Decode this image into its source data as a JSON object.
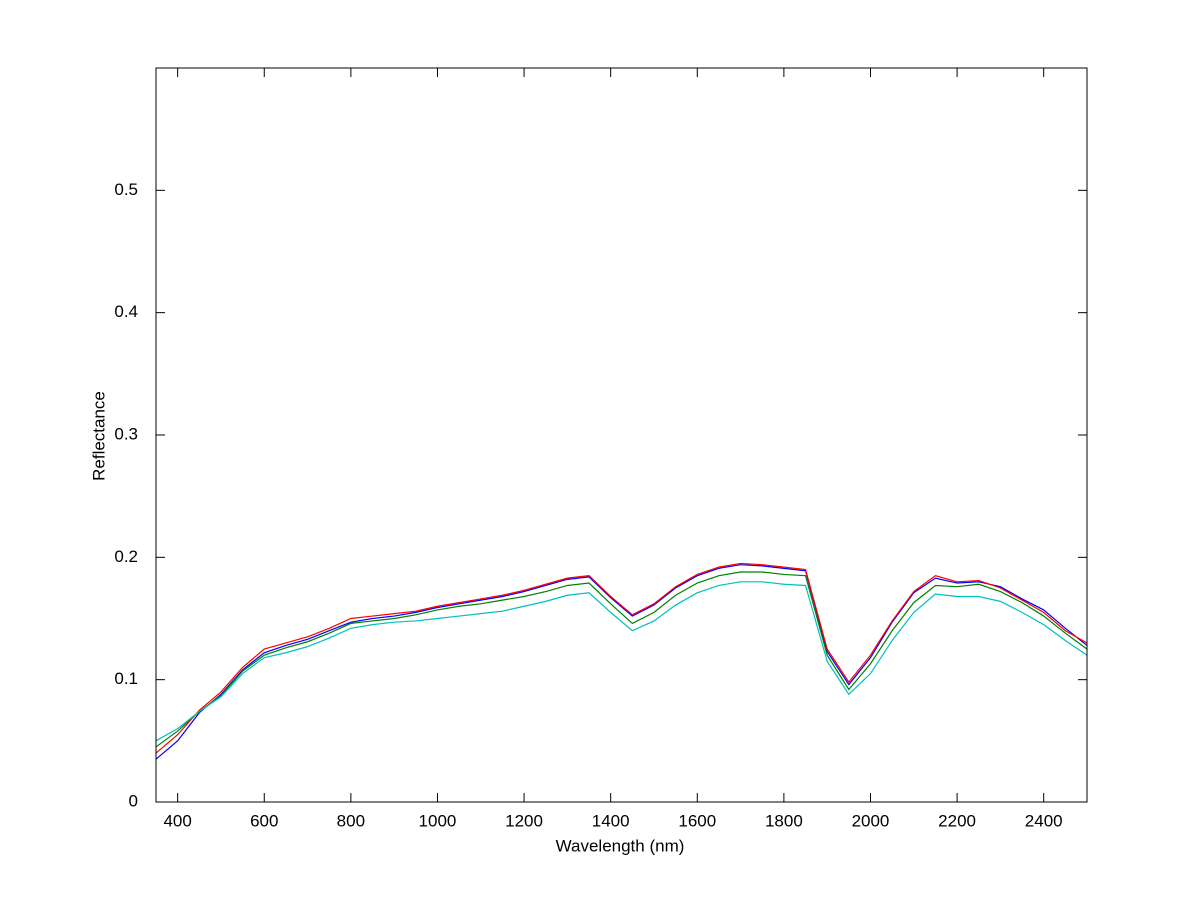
{
  "chart_data": {
    "type": "line",
    "xlabel": "Wavelength (nm)",
    "ylabel": "Reflectance",
    "x": [
      350,
      400,
      450,
      500,
      550,
      600,
      650,
      700,
      750,
      800,
      850,
      900,
      950,
      1000,
      1050,
      1100,
      1150,
      1200,
      1250,
      1300,
      1350,
      1400,
      1450,
      1500,
      1550,
      1600,
      1650,
      1700,
      1750,
      1800,
      1850,
      1900,
      1950,
      2000,
      2050,
      2100,
      2150,
      2200,
      2250,
      2300,
      2350,
      2400,
      2450,
      2500
    ],
    "series": [
      {
        "color": "#0000ff",
        "values": [
          0.035,
          0.05,
          0.073,
          0.088,
          0.108,
          0.122,
          0.128,
          0.133,
          0.14,
          0.147,
          0.15,
          0.152,
          0.155,
          0.159,
          0.162,
          0.165,
          0.168,
          0.172,
          0.177,
          0.182,
          0.184,
          0.167,
          0.152,
          0.161,
          0.175,
          0.185,
          0.191,
          0.194,
          0.193,
          0.191,
          0.189,
          0.123,
          0.096,
          0.118,
          0.147,
          0.171,
          0.183,
          0.179,
          0.18,
          0.176,
          0.166,
          0.157,
          0.142,
          0.128
        ]
      },
      {
        "color": "#ff0000",
        "values": [
          0.04,
          0.055,
          0.075,
          0.09,
          0.11,
          0.125,
          0.13,
          0.135,
          0.142,
          0.15,
          0.152,
          0.154,
          0.156,
          0.16,
          0.163,
          0.166,
          0.169,
          0.173,
          0.178,
          0.183,
          0.185,
          0.168,
          0.153,
          0.162,
          0.176,
          0.186,
          0.192,
          0.195,
          0.194,
          0.192,
          0.19,
          0.125,
          0.098,
          0.12,
          0.148,
          0.172,
          0.185,
          0.18,
          0.181,
          0.175,
          0.165,
          0.155,
          0.14,
          0.13
        ]
      },
      {
        "color": "#008000",
        "values": [
          0.045,
          0.058,
          0.074,
          0.087,
          0.107,
          0.12,
          0.126,
          0.131,
          0.138,
          0.146,
          0.148,
          0.15,
          0.153,
          0.157,
          0.16,
          0.162,
          0.165,
          0.168,
          0.172,
          0.177,
          0.179,
          0.162,
          0.146,
          0.155,
          0.169,
          0.179,
          0.185,
          0.188,
          0.188,
          0.186,
          0.185,
          0.12,
          0.092,
          0.113,
          0.14,
          0.163,
          0.177,
          0.176,
          0.178,
          0.172,
          0.163,
          0.152,
          0.138,
          0.125
        ]
      },
      {
        "color": "#00bfbf",
        "values": [
          0.05,
          0.06,
          0.074,
          0.086,
          0.105,
          0.118,
          0.122,
          0.127,
          0.134,
          0.142,
          0.145,
          0.147,
          0.148,
          0.15,
          0.152,
          0.154,
          0.156,
          0.16,
          0.164,
          0.169,
          0.171,
          0.155,
          0.14,
          0.148,
          0.161,
          0.171,
          0.177,
          0.18,
          0.18,
          0.178,
          0.177,
          0.115,
          0.088,
          0.105,
          0.132,
          0.155,
          0.17,
          0.168,
          0.168,
          0.164,
          0.155,
          0.145,
          0.132,
          0.12
        ]
      }
    ],
    "xlim": [
      350,
      2500
    ],
    "xticks": [
      400,
      600,
      800,
      1000,
      1200,
      1400,
      1600,
      1800,
      2000,
      2200,
      2400
    ],
    "ylim": [
      0,
      0.6
    ],
    "yticks": [
      0,
      0.1,
      0.2,
      0.3,
      0.4,
      0.5
    ],
    "grid": false
  }
}
